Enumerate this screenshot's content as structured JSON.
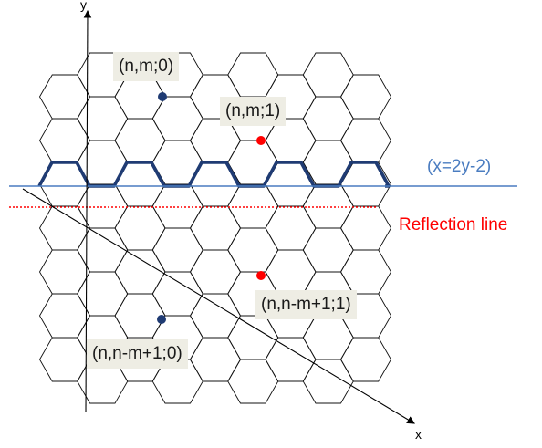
{
  "axes": {
    "x_label": "x",
    "y_label": "y"
  },
  "points": [
    {
      "label": "(n,m;0)",
      "color": "#1f3b73"
    },
    {
      "label": "(n,m;1)",
      "color": "#ff0000"
    },
    {
      "label": "(n,n-m+1;1)",
      "color": "#ff0000"
    },
    {
      "label": "(n,n-m+1;0)",
      "color": "#1f3b73"
    }
  ],
  "lines": {
    "blue_line_label": "(x=2y-2)",
    "blue_line_color": "#4a7cc0",
    "reflection_label": "Reflection line",
    "reflection_color": "#ff0000"
  },
  "highlight_color": "#1f3b73"
}
